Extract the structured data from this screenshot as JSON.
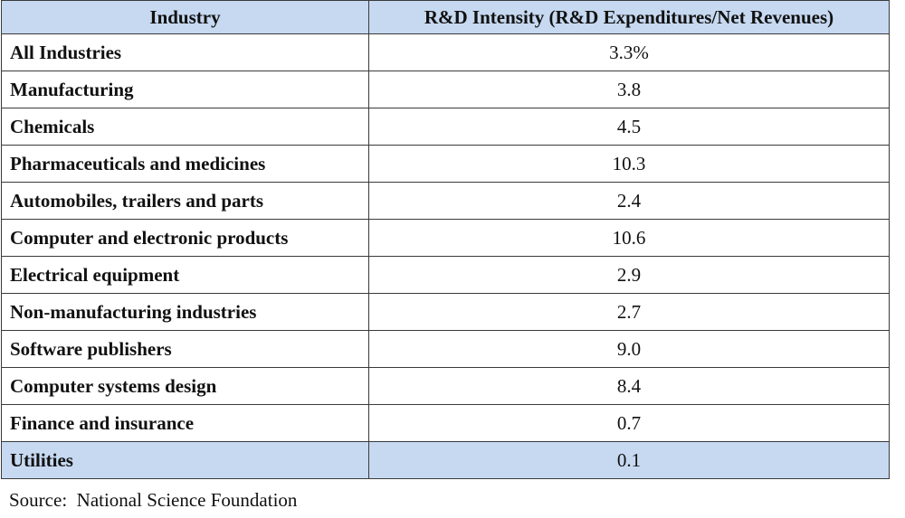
{
  "table": {
    "headers": {
      "industry": "Industry",
      "intensity": "R&D Intensity (R&D Expenditures/Net Revenues)"
    },
    "rows": [
      {
        "industry": "All Industries",
        "value": "3.3%"
      },
      {
        "industry": "Manufacturing",
        "value": "3.8"
      },
      {
        "industry": "Chemicals",
        "value": "4.5"
      },
      {
        "industry": "Pharmaceuticals and medicines",
        "value": "10.3"
      },
      {
        "industry": "Automobiles, trailers and parts",
        "value": "2.4"
      },
      {
        "industry": "Computer and electronic products",
        "value": "10.6"
      },
      {
        "industry": "Electrical equipment",
        "value": "2.9"
      },
      {
        "industry": "Non-manufacturing industries",
        "value": "2.7"
      },
      {
        "industry": "Software publishers",
        "value": "9.0"
      },
      {
        "industry": "Computer systems design",
        "value": "8.4"
      },
      {
        "industry": "Finance and insurance",
        "value": "0.7"
      },
      {
        "industry": "Utilities",
        "value": "0.1"
      }
    ]
  },
  "source": "Source:  National Science Foundation",
  "colors": {
    "header_fill": "#c6d9f1",
    "highlight_row_fill": "#c6d9f1",
    "border": "#3a3a3a"
  }
}
